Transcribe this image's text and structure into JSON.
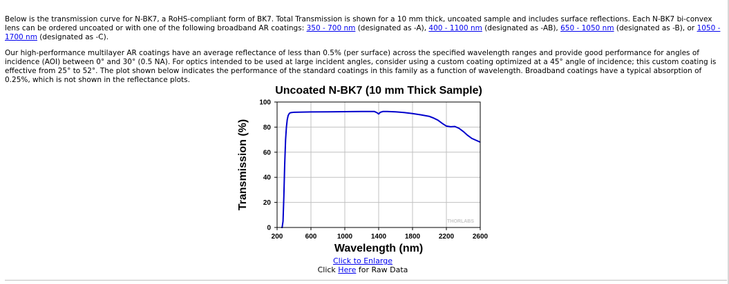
{
  "intro": {
    "p1_text1": "Below is the transmission curve for N-BK7, a RoHS-compliant form of BK7. Total Transmission is shown for a 10 mm thick, uncoated sample and includes surface reflections. Each N-BK7 bi-convex lens can be ordered uncoated or with one of the following broadband AR coatings: ",
    "coat_a_link": "350 - 700 nm",
    "p1_text2": " (designated as -A), ",
    "coat_ab_link": "400 - 1100 nm",
    "p1_text3": " (designated as -AB), ",
    "coat_b_link": "650 - 1050 nm",
    "p1_text4": " (designated as -B), or ",
    "coat_c_link": "1050 - 1700 nm",
    "p1_text5": " (designated as -C).",
    "p2_text": "Our high-performance multilayer AR coatings have an average reflectance of less than 0.5% (per surface) across the specified wavelength ranges and provide good performance for angles of incidence (AOI) between 0° and 30° (0.5 NA). For optics intended to be used at large incident angles, consider using a custom coating optimized at a 45° angle of incidence; this custom coating is effective from 25° to 52°. The plot shown below indicates the performance of the standard coatings in this family as a function of wavelength. Broadband coatings have a typical absorption of 0.25%, which is not shown in the reflectance plots."
  },
  "chart_data": {
    "type": "line",
    "title": "Uncoated N-BK7 (10 mm Thick Sample)",
    "xlabel": "Wavelength (nm)",
    "ylabel": "Transmission (%)",
    "xlim": [
      200,
      2600
    ],
    "ylim": [
      0,
      100
    ],
    "xticks": [
      200,
      600,
      1000,
      1400,
      1800,
      2200,
      2600
    ],
    "yticks": [
      0,
      20,
      40,
      60,
      80,
      100
    ],
    "grid": true,
    "watermark": "THORLABS",
    "line_color": "#0000cc",
    "series": [
      {
        "x": [
          250,
          260,
          270,
          280,
          290,
          300,
          310,
          320,
          330,
          340,
          350,
          360,
          380,
          400,
          500,
          600,
          800,
          1000,
          1200,
          1350,
          1380,
          1400,
          1420,
          1450,
          1500,
          1600,
          1700,
          1800,
          1900,
          2000,
          2050,
          2100,
          2150,
          2200,
          2250,
          2300,
          2350,
          2400,
          2450,
          2500,
          2550,
          2600
        ],
        "y": [
          0,
          0,
          5,
          25,
          50,
          70,
          80,
          86,
          89,
          90.5,
          91.2,
          91.5,
          91.7,
          91.8,
          92,
          92.1,
          92.2,
          92.3,
          92.4,
          92.4,
          91.5,
          90.5,
          91.8,
          92.4,
          92.4,
          92.2,
          91.6,
          90.8,
          89.8,
          88.5,
          87.2,
          85.5,
          83,
          80.8,
          80.3,
          80.5,
          79,
          76.5,
          73.5,
          71,
          69.5,
          68
        ]
      }
    ]
  },
  "links": {
    "enlarge": "Click to Enlarge",
    "raw_prefix": "Click ",
    "raw_link": "Here",
    "raw_suffix": " for Raw Data"
  }
}
